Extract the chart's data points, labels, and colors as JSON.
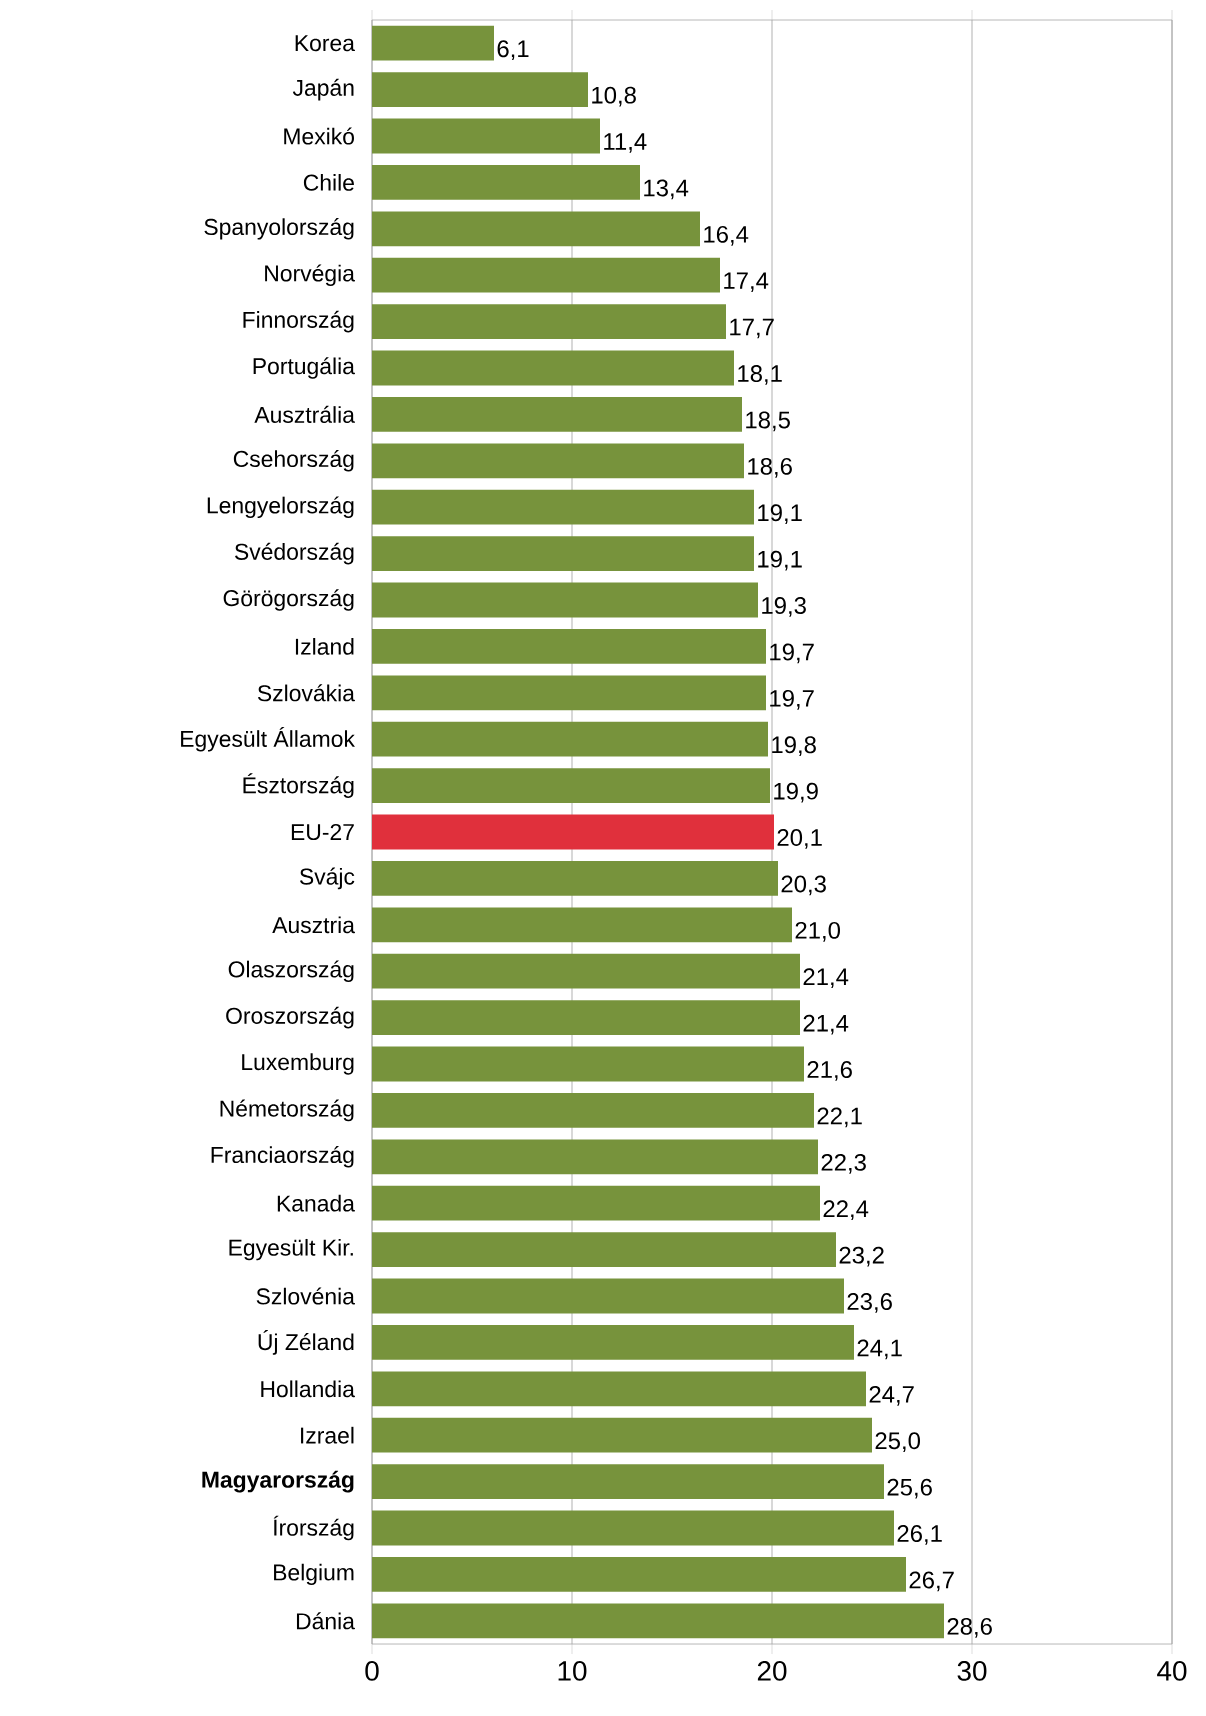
{
  "chart_data": {
    "type": "bar",
    "orientation": "horizontal",
    "categories": [
      "Korea",
      "Japán",
      "Mexikó",
      "Chile",
      "Spanyolország",
      "Norvégia",
      "Finnország",
      "Portugália",
      "Ausztrália",
      "Csehország",
      "Lengyelország",
      "Svédország",
      "Görögország",
      "Izland",
      "Szlovákia",
      "Egyesült Államok",
      "Észtország",
      "EU-27",
      "Svájc",
      "Ausztria",
      "Olaszország",
      "Oroszország",
      "Luxemburg",
      "Németország",
      "Franciaország",
      "Kanada",
      "Egyesült Kir.",
      "Szlovénia",
      "Új Zéland",
      "Hollandia",
      "Izrael",
      "**Magyarország**",
      "Írország",
      "Belgium",
      "Dánia"
    ],
    "values": [
      6.1,
      10.8,
      11.4,
      13.4,
      16.4,
      17.4,
      17.7,
      18.1,
      18.5,
      18.6,
      19.1,
      19.1,
      19.3,
      19.7,
      19.7,
      19.8,
      19.9,
      20.1,
      20.3,
      21.0,
      21.4,
      21.4,
      21.6,
      22.1,
      22.3,
      22.4,
      23.2,
      23.6,
      24.1,
      24.7,
      25.0,
      25.6,
      26.1,
      26.7,
      28.6
    ],
    "value_labels": [
      "6,1",
      "10,8",
      "11,4",
      "13,4",
      "16,4",
      "17,4",
      "17,7",
      "18,1",
      "18,5",
      "18,6",
      "19,1",
      "19,1",
      "19,3",
      "19,7",
      "19,7",
      "19,8",
      "19,9",
      "20,1",
      "20,3",
      "21,0",
      "21,4",
      "21,4",
      "21,6",
      "22,1",
      "22,3",
      "22,4",
      "23,2",
      "23,6",
      "24,1",
      "24,7",
      "25,0",
      "25,6",
      "26,1",
      "26,7",
      "28,6"
    ],
    "colors": [
      "#77933c",
      "#77933c",
      "#77933c",
      "#77933c",
      "#77933c",
      "#77933c",
      "#77933c",
      "#77933c",
      "#77933c",
      "#77933c",
      "#77933c",
      "#77933c",
      "#77933c",
      "#77933c",
      "#77933c",
      "#77933c",
      "#77933c",
      "#e0303c",
      "#77933c",
      "#77933c",
      "#77933c",
      "#77933c",
      "#77933c",
      "#77933c",
      "#77933c",
      "#77933c",
      "#77933c",
      "#77933c",
      "#77933c",
      "#77933c",
      "#77933c",
      "#77933c",
      "#77933c",
      "#77933c",
      "#77933c"
    ],
    "xlim": [
      0,
      40
    ],
    "xticks": [
      0,
      10,
      20,
      30,
      40
    ],
    "grid": "x"
  }
}
